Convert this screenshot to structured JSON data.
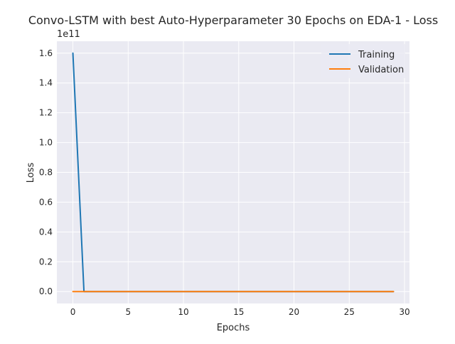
{
  "chart_data": {
    "type": "line",
    "title": "Convo-LSTM with best Auto-Hyperparameter 30 Epochs on EDA-1 - Loss",
    "xlabel": "Epochs",
    "ylabel": "Loss",
    "y_multiplier_label": "1e11",
    "xlim": [
      -1.45,
      30.45
    ],
    "ylim": [
      -0.08,
      1.68
    ],
    "xticks": [
      0,
      5,
      10,
      15,
      20,
      25,
      30
    ],
    "yticks": [
      0.0,
      0.2,
      0.4,
      0.6,
      0.8,
      1.0,
      1.2,
      1.4,
      1.6
    ],
    "ytick_labels": [
      "0.0",
      "0.2",
      "0.4",
      "0.6",
      "0.8",
      "1.0",
      "1.2",
      "1.4",
      "1.6"
    ],
    "grid": true,
    "legend_position": "upper right",
    "series": [
      {
        "name": "Training",
        "color": "#1f77b4",
        "x": [
          0,
          1,
          2,
          3,
          4,
          5,
          6,
          7,
          8,
          9,
          10,
          11,
          12,
          13,
          14,
          15,
          16,
          17,
          18,
          19,
          20,
          21,
          22,
          23,
          24,
          25,
          26,
          27,
          28,
          29
        ],
        "values": [
          1.6,
          0,
          0,
          0,
          0,
          0,
          0,
          0,
          0,
          0,
          0,
          0,
          0,
          0,
          0,
          0,
          0,
          0,
          0,
          0,
          0,
          0,
          0,
          0,
          0,
          0,
          0,
          0,
          0,
          0
        ]
      },
      {
        "name": "Validation",
        "color": "#ff7f0e",
        "x": [
          0,
          1,
          2,
          3,
          4,
          5,
          6,
          7,
          8,
          9,
          10,
          11,
          12,
          13,
          14,
          15,
          16,
          17,
          18,
          19,
          20,
          21,
          22,
          23,
          24,
          25,
          26,
          27,
          28,
          29
        ],
        "values": [
          0,
          0,
          0,
          0,
          0,
          0,
          0,
          0,
          0,
          0,
          0,
          0,
          0,
          0,
          0,
          0,
          0,
          0,
          0,
          0,
          0,
          0,
          0,
          0,
          0,
          0,
          0,
          0,
          0,
          0
        ]
      }
    ]
  }
}
